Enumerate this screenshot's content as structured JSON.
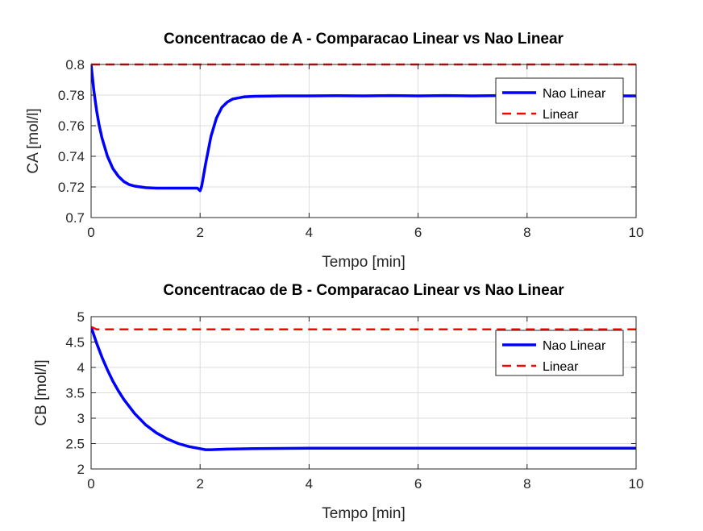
{
  "colors": {
    "nonlinear": "#0000ff",
    "linear": "#ff0000",
    "axis": "#262626",
    "grid": "#dcdcdc"
  },
  "chart_data": [
    {
      "type": "line",
      "title": "Concentracao de A - Comparacao Linear vs Nao Linear",
      "xlabel": "Tempo [min]",
      "ylabel": "CA [mol/l]",
      "xlim": [
        0,
        10
      ],
      "ylim": [
        0.7,
        0.8
      ],
      "xticks": [
        0,
        2,
        4,
        6,
        8,
        10
      ],
      "xtick_labels": [
        "0",
        "2",
        "4",
        "6",
        "8",
        "10"
      ],
      "yticks": [
        0.7,
        0.72,
        0.74,
        0.76,
        0.78,
        0.8
      ],
      "ytick_labels": [
        "0.7",
        "0.72",
        "0.74",
        "0.76",
        "0.78",
        "0.8"
      ],
      "grid": true,
      "legend_position": "top-right",
      "series": [
        {
          "name": "Nao Linear",
          "style": "solid",
          "x": [
            0,
            0.05,
            0.1,
            0.15,
            0.2,
            0.3,
            0.4,
            0.5,
            0.6,
            0.7,
            0.8,
            1.0,
            1.2,
            1.5,
            1.8,
            1.95,
            2.0,
            2.03,
            2.1,
            2.2,
            2.3,
            2.4,
            2.5,
            2.6,
            2.8,
            3.0,
            3.5,
            4.0,
            4.5,
            5.0,
            5.5,
            6.0,
            6.5,
            7.0,
            7.5,
            8.0,
            8.5,
            9.0,
            9.5,
            10.0
          ],
          "y": [
            0.8,
            0.783,
            0.77,
            0.76,
            0.752,
            0.74,
            0.732,
            0.727,
            0.7235,
            0.7215,
            0.7205,
            0.7195,
            0.7192,
            0.7192,
            0.7192,
            0.7192,
            0.7175,
            0.7205,
            0.735,
            0.753,
            0.765,
            0.772,
            0.7755,
            0.7775,
            0.7788,
            0.7792,
            0.7795,
            0.7795,
            0.7796,
            0.7795,
            0.7797,
            0.7795,
            0.7797,
            0.7795,
            0.7797,
            0.7797,
            0.7795,
            0.7796,
            0.7795,
            0.7795
          ]
        },
        {
          "name": "Linear",
          "style": "dashed",
          "x": [
            0,
            10
          ],
          "y": [
            0.8,
            0.8
          ]
        }
      ]
    },
    {
      "type": "line",
      "title": "Concentracao de B - Comparacao Linear vs Nao Linear",
      "xlabel": "Tempo [min]",
      "ylabel": "CB [mol/l]",
      "xlim": [
        0,
        10
      ],
      "ylim": [
        2,
        5
      ],
      "xticks": [
        0,
        2,
        4,
        6,
        8,
        10
      ],
      "xtick_labels": [
        "0",
        "2",
        "4",
        "6",
        "8",
        "10"
      ],
      "yticks": [
        2,
        2.5,
        3,
        3.5,
        4,
        4.5,
        5
      ],
      "ytick_labels": [
        "2",
        "2.5",
        "3",
        "3.5",
        "4",
        "4.5",
        "5"
      ],
      "grid": true,
      "legend_position": "top-right",
      "series": [
        {
          "name": "Nao Linear",
          "style": "solid",
          "x": [
            0,
            0.1,
            0.2,
            0.3,
            0.4,
            0.5,
            0.6,
            0.8,
            1.0,
            1.2,
            1.4,
            1.6,
            1.8,
            2.0,
            2.1,
            2.2,
            2.5,
            3.0,
            4.0,
            5.0,
            6.0,
            7.0,
            8.0,
            9.0,
            10.0
          ],
          "y": [
            4.8,
            4.48,
            4.2,
            3.95,
            3.73,
            3.54,
            3.37,
            3.09,
            2.87,
            2.71,
            2.59,
            2.5,
            2.44,
            2.4,
            2.38,
            2.38,
            2.39,
            2.4,
            2.41,
            2.41,
            2.41,
            2.41,
            2.41,
            2.41,
            2.41
          ]
        },
        {
          "name": "Linear",
          "style": "dashed",
          "x": [
            0,
            0.1,
            10
          ],
          "y": [
            4.8,
            4.75,
            4.75
          ]
        }
      ]
    }
  ]
}
